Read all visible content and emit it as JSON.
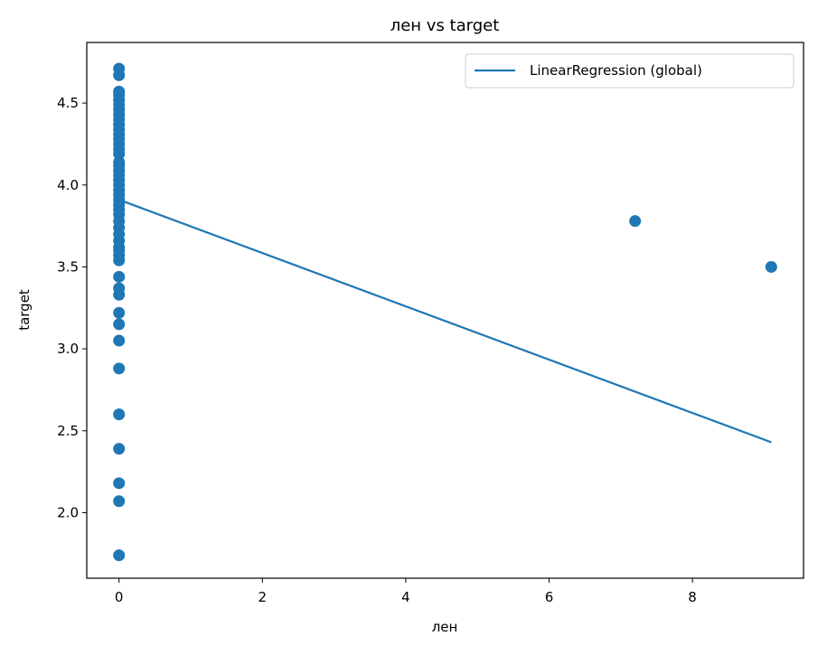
{
  "chart_data": {
    "type": "scatter",
    "title": "лен vs target",
    "xlabel": "лен",
    "ylabel": "target",
    "xlim": [
      -0.45,
      9.55
    ],
    "ylim": [
      1.6,
      4.87
    ],
    "xticks": [
      0,
      2,
      4,
      6,
      8
    ],
    "yticks": [
      {
        "value": 2.0,
        "label": "2.0"
      },
      {
        "value": 2.5,
        "label": "2.5"
      },
      {
        "value": 3.0,
        "label": "3.0"
      },
      {
        "value": 3.5,
        "label": "3.5"
      },
      {
        "value": 4.0,
        "label": "4.0"
      },
      {
        "value": 4.5,
        "label": "4.5"
      }
    ],
    "legend": "upper right",
    "series": [
      {
        "type": "scatter",
        "color": "#1f77b4",
        "x": [
          0,
          0,
          0,
          0,
          0,
          0,
          0,
          0,
          0,
          0,
          0,
          0,
          0,
          0,
          0,
          0,
          0,
          0,
          0,
          0,
          0,
          0,
          0,
          0,
          0,
          0,
          0,
          0,
          0,
          0,
          0,
          0,
          0,
          0,
          0,
          0,
          0,
          0,
          0,
          0,
          0,
          0,
          0,
          0,
          0,
          0,
          0,
          0,
          7.2,
          9.1
        ],
        "y": [
          4.71,
          4.67,
          4.57,
          4.55,
          4.52,
          4.49,
          4.46,
          4.43,
          4.4,
          4.37,
          4.34,
          4.31,
          4.28,
          4.25,
          4.22,
          4.19,
          4.14,
          4.12,
          4.09,
          4.06,
          4.03,
          4.0,
          3.97,
          3.94,
          3.91,
          3.88,
          3.85,
          3.82,
          3.78,
          3.74,
          3.7,
          3.66,
          3.62,
          3.6,
          3.57,
          3.54,
          3.44,
          3.37,
          3.33,
          3.22,
          3.15,
          3.05,
          2.88,
          2.6,
          2.39,
          2.18,
          2.07,
          1.74,
          3.78,
          3.5
        ]
      },
      {
        "type": "line",
        "name": "LinearRegression (global)",
        "color": "#1f77b4",
        "x": [
          0,
          9.1
        ],
        "y": [
          3.91,
          2.43
        ]
      }
    ]
  }
}
